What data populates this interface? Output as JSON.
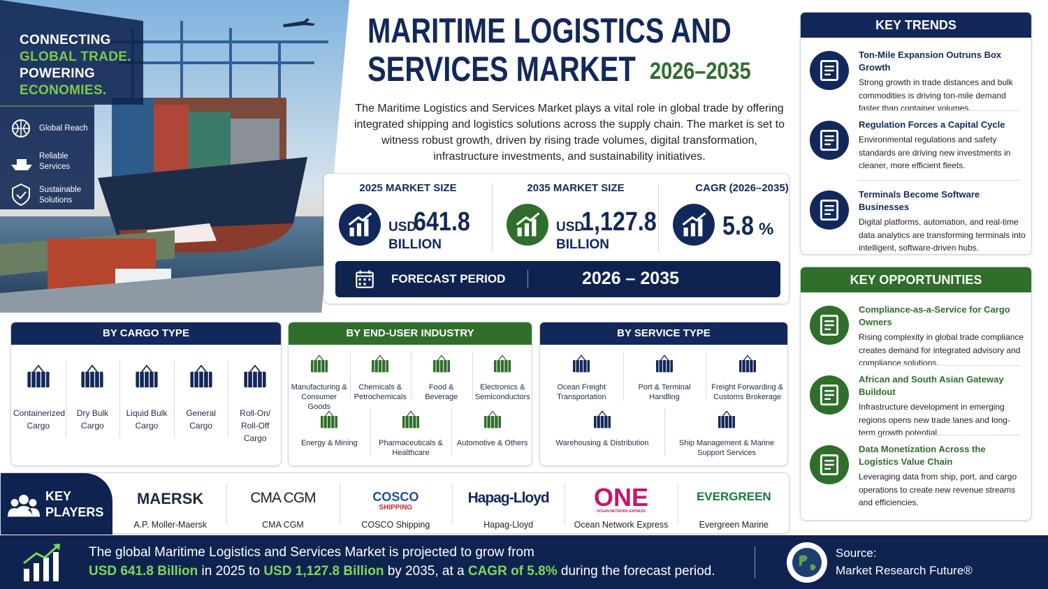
{
  "hero": {
    "tagline": [
      "CONNECTING",
      "GLOBAL TRADE.",
      "POWERING",
      "ECONOMIES."
    ],
    "features": [
      "Global Reach",
      "Reliable Services",
      "Sustainable Solutions"
    ]
  },
  "header": {
    "title_line1": "MARITIME LOGISTICS AND",
    "title_line2": "SERVICES MARKET",
    "years": "2026–2035",
    "description": "The Maritime Logistics and Services Market plays a vital role in global trade by offering integrated shipping and logistics solutions across the supply chain. The market is set to witness robust growth, driven by rising trade volumes, digital transformation, infrastructure investments, and sustainability initiatives."
  },
  "stats": [
    {
      "label": "2025 MARKET SIZE",
      "prefix": "USD",
      "value": "641.8",
      "unit": "BILLION"
    },
    {
      "label": "2035 MARKET SIZE",
      "prefix": "USD",
      "value": "1,127.8",
      "unit": "BILLION"
    },
    {
      "label": "CAGR (2026–2035)",
      "value": "5.8",
      "unit": "%"
    }
  ],
  "forecast": {
    "label": "FORECAST PERIOD",
    "value": "2026 – 2035"
  },
  "key_trends": {
    "title": "KEY TRENDS",
    "items": [
      {
        "title": "Ton-Mile Expansion Outruns Box Growth",
        "text": "Strong growth in trade distances and bulk commodities is driving ton-mile demand faster than container volumes."
      },
      {
        "title": "Regulation Forces a Capital Cycle",
        "text": "Environmental regulations and safety standards are driving new investments in cleaner, more efficient fleets."
      },
      {
        "title": "Terminals Become Software Businesses",
        "text": "Digital platforms, automation, and real-time data analytics are transforming terminals into intelligent, software-driven hubs."
      }
    ]
  },
  "key_opportunities": {
    "title": "KEY OPPORTUNITIES",
    "items": [
      {
        "title": "Compliance-as-a-Service for Cargo Owners",
        "text": "Rising complexity in global trade compliance creates demand for integrated advisory and compliance solutions."
      },
      {
        "title": "African and South Asian Gateway Buildout",
        "text": "Infrastructure development in emerging regions opens new trade lanes and long-term growth potential."
      },
      {
        "title": "Data Monetization Across the Logistics Value Chain",
        "text": "Leveraging data from ship, port, and cargo operations to create new revenue streams and efficiencies."
      }
    ]
  },
  "segments": [
    {
      "title": "BY CARGO TYPE",
      "items": [
        "Containerized Cargo",
        "Dry Bulk Cargo",
        "Liquid Bulk Cargo",
        "General Cargo",
        "Roll-On/ Roll-Off Cargo"
      ]
    },
    {
      "title": "BY END-USER INDUSTRY",
      "items": [
        "Manufacturing & Consumer Goods",
        "Chemicals & Petrochemicals",
        "Food & Beverage",
        "Electronics & Semiconductors",
        "Energy & Mining",
        "Pharmaceuticals & Healthcare",
        "Automotive & Others"
      ]
    },
    {
      "title": "BY SERVICE TYPE",
      "items": [
        "Ocean Freight Transportation",
        "Port & Terminal Handling",
        "Freight Forwarding & Customs Brokerage",
        "Warehousing & Distribution",
        "Ship Management & Marine Support Services"
      ]
    }
  ],
  "key_players": {
    "title": "KEY PLAYERS",
    "players": [
      {
        "logo": "MAERSK",
        "name": "A.P. Moller-Maersk"
      },
      {
        "logo": "CMA CGM",
        "name": "CMA CGM"
      },
      {
        "logo": "COSCO",
        "logo_sub": "SHIPPING",
        "name": "COSCO Shipping"
      },
      {
        "logo": "Hapag-Lloyd",
        "name": "Hapag-Lloyd"
      },
      {
        "logo": "ONE",
        "logo_sub": "OCEAN NETWORK EXPRESS",
        "name": "Ocean Network Express"
      },
      {
        "logo": "EVERGREEN",
        "name": "Evergreen Marine"
      }
    ]
  },
  "footer": {
    "line1": "The global Maritime Logistics and Services Market is projected to grow from",
    "parts": [
      "USD 641.8 Billion",
      " in 2025 to ",
      "USD 1,127.8 Billion",
      " by 2035, at a ",
      "CAGR of 5.8%",
      " during the forecast period."
    ],
    "source_label": "Source:",
    "source": "Market Research Future®"
  }
}
